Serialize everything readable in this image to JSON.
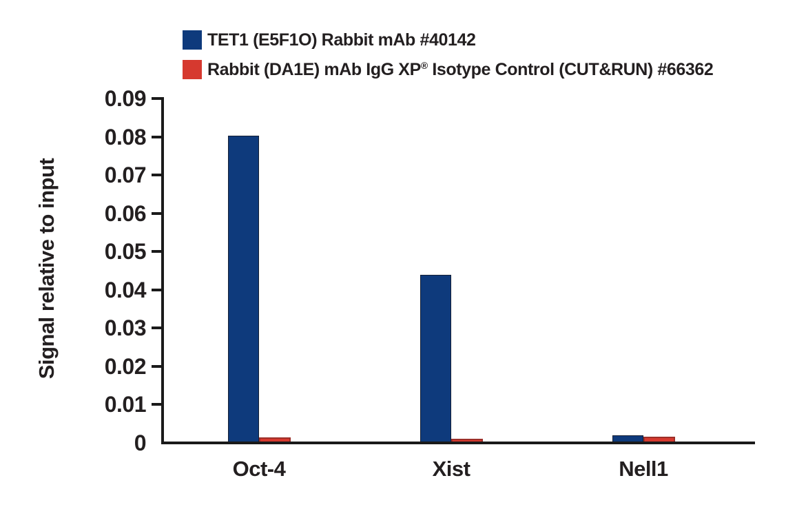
{
  "legend": {
    "items": [
      {
        "label": "TET1 (E5F1O) Rabbit mAb #40142",
        "color": "#0e3a7c"
      },
      {
        "label_pre": "Rabbit (DA1E) mAb IgG XP",
        "label_sup": "®",
        "label_post": " Isotype Control (CUT&RUN) #66362",
        "color": "#d6392f"
      }
    ]
  },
  "chart_data": {
    "type": "bar",
    "categories": [
      "Oct-4",
      "Xist",
      "Nell1"
    ],
    "series": [
      {
        "name": "TET1 (E5F1O) Rabbit mAb #40142",
        "color": "#0e3a7c",
        "values": [
          0.08,
          0.0435,
          0.0016
        ]
      },
      {
        "name": "Rabbit (DA1E) mAb IgG XP® Isotype Control (CUT&RUN) #66362",
        "color": "#d6392f",
        "values": [
          0.001,
          0.0008,
          0.0013
        ]
      }
    ],
    "title": "",
    "xlabel": "",
    "ylabel": "Signal relative to input",
    "ylim": [
      0,
      0.09
    ],
    "ytick_labels": [
      "0",
      "0.01",
      "0.02",
      "0.03",
      "0.04",
      "0.05",
      "0.06",
      "0.07",
      "0.08",
      "0.09"
    ],
    "grid": false,
    "legend_position": "top"
  }
}
